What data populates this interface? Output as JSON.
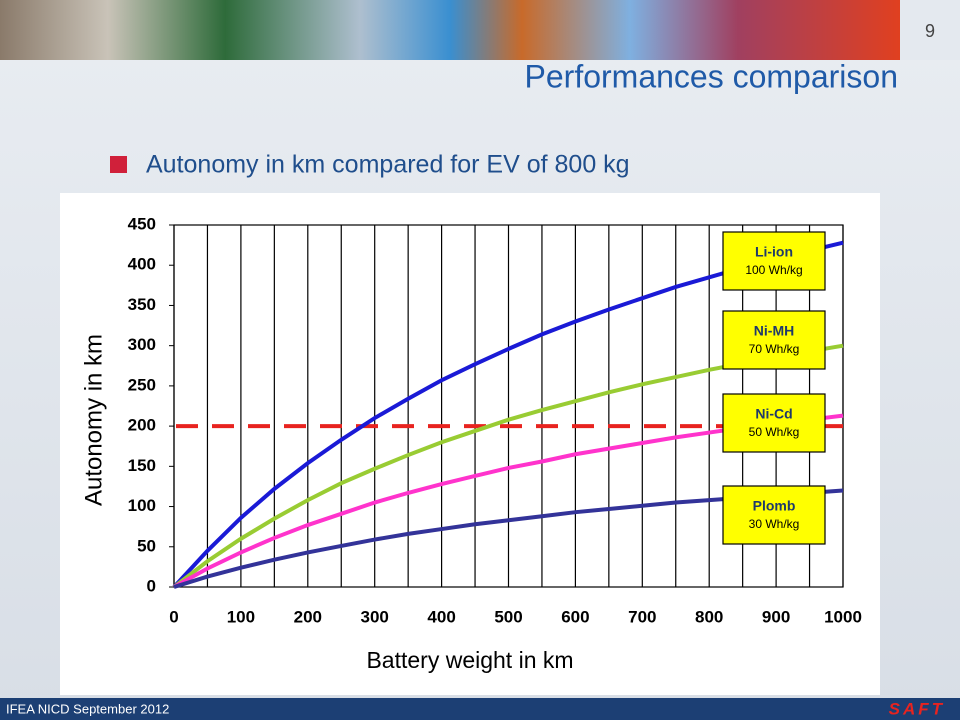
{
  "slide": {
    "page_number": 9,
    "title": "Performances comparison",
    "bullet": "Autonomy in km compared for EV of 800 kg",
    "footer": "IFEA NICD September 2012",
    "logo": "SAFT"
  },
  "chart_data": {
    "type": "line",
    "x_label": "Battery weight in km",
    "y_label": "Autonomy in km",
    "x": [
      0,
      50,
      100,
      150,
      200,
      250,
      300,
      350,
      400,
      450,
      500,
      550,
      600,
      650,
      700,
      750,
      800,
      850,
      900,
      950,
      1000
    ],
    "series": [
      {
        "name": "Li-ion",
        "label": "100 Wh/kg",
        "color": "#1a1ad6",
        "values": [
          0,
          45,
          86,
          122,
          154,
          183,
          210,
          234,
          257,
          277,
          296,
          314,
          330,
          345,
          359,
          373,
          385,
          397,
          408,
          418,
          428
        ]
      },
      {
        "name": "Ni-MH",
        "label": "70 Wh/kg",
        "color": "#99cc33",
        "values": [
          0,
          32,
          60,
          85,
          108,
          129,
          147,
          164,
          180,
          194,
          208,
          220,
          231,
          242,
          252,
          261,
          270,
          278,
          286,
          293,
          300
        ]
      },
      {
        "name": "Ni-Cd",
        "label": "50 Wh/kg",
        "color": "#ff33cc",
        "values": [
          0,
          23,
          43,
          61,
          77,
          91,
          105,
          117,
          128,
          138,
          148,
          156,
          165,
          172,
          179,
          186,
          192,
          198,
          203,
          208,
          213
        ]
      },
      {
        "name": "Plomb",
        "label": "30 Wh/kg",
        "color": "#333399",
        "values": [
          0,
          13,
          24,
          34,
          43,
          51,
          59,
          66,
          72,
          78,
          83,
          88,
          93,
          97,
          101,
          105,
          108,
          111,
          114,
          117,
          120
        ]
      }
    ],
    "reference_line": {
      "y": 200,
      "color": "#e8231f"
    },
    "legend_color": "#ffff00",
    "xlim": [
      0,
      1000
    ],
    "xticks": [
      0,
      100,
      200,
      300,
      400,
      500,
      600,
      700,
      800,
      900,
      1000
    ],
    "x_grid": [
      0,
      50,
      100,
      150,
      200,
      250,
      300,
      350,
      400,
      450,
      500,
      550,
      600,
      650,
      700,
      750,
      800,
      850,
      900,
      950,
      1000
    ],
    "ylim": [
      0,
      450
    ],
    "yticks": [
      0,
      50,
      100,
      150,
      200,
      250,
      300,
      350,
      400,
      450
    ],
    "grid": "x"
  }
}
